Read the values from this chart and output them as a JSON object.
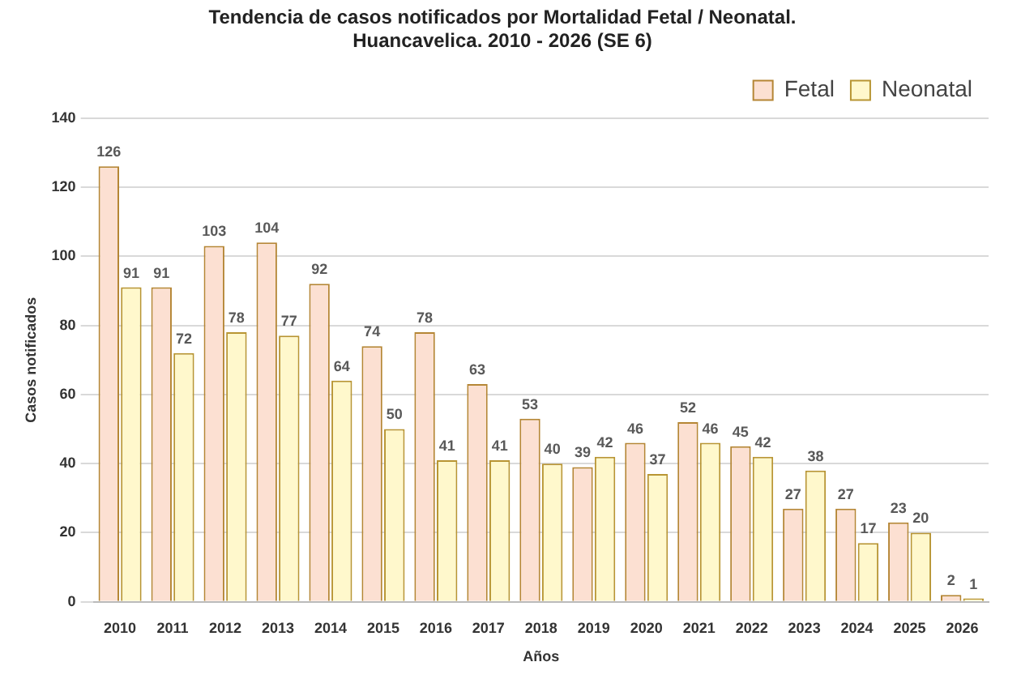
{
  "chart_data": {
    "type": "bar",
    "title": "Tendencia de casos notificados por Mortalidad Fetal / Neonatal.\nHuancavelica. 2010 - 2026 (SE 6)",
    "xlabel": "Años",
    "ylabel": "Casos notificados",
    "categories": [
      "2010",
      "2011",
      "2012",
      "2013",
      "2014",
      "2015",
      "2016",
      "2017",
      "2018",
      "2019",
      "2020",
      "2021",
      "2022",
      "2023",
      "2024",
      "2025",
      "2026"
    ],
    "series": [
      {
        "name": "Fetal",
        "color": "#fce0d2",
        "values": [
          126,
          91,
          103,
          104,
          92,
          74,
          78,
          63,
          53,
          39,
          46,
          52,
          45,
          27,
          27,
          23,
          2
        ]
      },
      {
        "name": "Neonatal",
        "color": "#fff8cc",
        "values": [
          91,
          72,
          78,
          77,
          64,
          50,
          41,
          41,
          40,
          42,
          37,
          46,
          42,
          38,
          17,
          20,
          1
        ]
      }
    ],
    "ylim": [
      0,
      140
    ],
    "yticks": [
      0,
      20,
      40,
      60,
      80,
      100,
      120,
      140
    ],
    "grid": "y",
    "legend": "top right",
    "data_labels": true
  }
}
